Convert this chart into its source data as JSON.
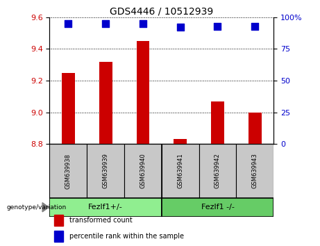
{
  "title": "GDS4446 / 10512939",
  "samples": [
    "GSM639938",
    "GSM639939",
    "GSM639940",
    "GSM639941",
    "GSM639942",
    "GSM639943"
  ],
  "bar_values": [
    9.25,
    9.32,
    9.45,
    8.83,
    9.07,
    9.0
  ],
  "percentile_values": [
    95,
    95,
    95,
    92,
    93,
    93
  ],
  "bar_color": "#cc0000",
  "percentile_color": "#0000cc",
  "ylim_left": [
    8.8,
    9.6
  ],
  "ylim_right": [
    0,
    100
  ],
  "yticks_left": [
    8.8,
    9.0,
    9.2,
    9.4,
    9.6
  ],
  "yticks_right": [
    0,
    25,
    50,
    75,
    100
  ],
  "group1_label": "Fezlf1+/-",
  "group2_label": "Fezlf1 -/-",
  "group1_color": "#90ee90",
  "group2_color": "#66cc66",
  "sample_box_color": "#c8c8c8",
  "legend_bar_label": "transformed count",
  "legend_pct_label": "percentile rank within the sample",
  "genotype_label": "genotype/variation",
  "bar_bottom": 8.8,
  "bar_width": 0.35,
  "pct_marker_size": 55,
  "title_fontsize": 10,
  "tick_fontsize": 8,
  "sample_fontsize": 6,
  "legend_fontsize": 7,
  "group_fontsize": 8
}
